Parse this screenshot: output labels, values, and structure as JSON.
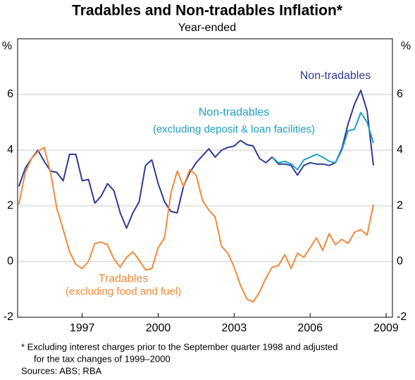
{
  "chart_data": {
    "type": "line",
    "title": "Tradables and Non-tradables Inflation*",
    "subtitle": "Year-ended",
    "y_label": "%",
    "y2_label": "%",
    "x": [
      1994.5,
      1994.75,
      1995,
      1995.25,
      1995.5,
      1995.75,
      1996,
      1996.25,
      1996.5,
      1996.75,
      1997,
      1997.25,
      1997.5,
      1997.75,
      1998,
      1998.25,
      1998.5,
      1998.75,
      1999,
      1999.25,
      1999.5,
      1999.75,
      2000,
      2000.25,
      2000.5,
      2000.75,
      2001,
      2001.25,
      2001.5,
      2001.75,
      2002,
      2002.25,
      2002.5,
      2002.75,
      2003,
      2003.25,
      2003.5,
      2003.75,
      2004,
      2004.25,
      2004.5,
      2004.75,
      2005,
      2005.25,
      2005.5,
      2005.75,
      2006,
      2006.25,
      2006.5,
      2006.75,
      2007,
      2007.25,
      2007.5,
      2007.75,
      2008,
      2008.25,
      2008.5
    ],
    "series": [
      {
        "name": "Non-tradables",
        "color": "#2e3b94",
        "values": [
          2.7,
          3.35,
          3.7,
          4.0,
          3.6,
          3.25,
          3.2,
          2.9,
          3.85,
          3.85,
          2.9,
          2.95,
          2.1,
          2.35,
          2.8,
          2.55,
          1.75,
          1.2,
          1.75,
          2.15,
          3.45,
          3.65,
          2.8,
          2.15,
          1.8,
          1.75,
          2.7,
          3.2,
          3.55,
          3.8,
          4.05,
          3.75,
          4.0,
          4.1,
          4.15,
          4.35,
          4.2,
          4.15,
          3.7,
          3.55,
          3.75,
          3.5,
          3.5,
          3.45,
          3.1,
          3.45,
          3.55,
          3.5,
          3.5,
          3.45,
          3.55,
          4.05,
          4.95,
          5.65,
          6.15,
          5.4,
          3.45
        ]
      },
      {
        "name": "Non-tradables (excluding deposit & loan facilities)",
        "color": "#1c9fc2",
        "values": [
          null,
          null,
          null,
          null,
          null,
          null,
          null,
          null,
          null,
          null,
          null,
          null,
          null,
          null,
          null,
          null,
          null,
          null,
          null,
          null,
          null,
          null,
          null,
          null,
          null,
          null,
          null,
          null,
          null,
          null,
          null,
          null,
          null,
          null,
          null,
          null,
          null,
          null,
          null,
          null,
          3.75,
          3.55,
          3.6,
          3.5,
          3.3,
          3.65,
          3.75,
          3.85,
          3.75,
          3.6,
          3.55,
          4.0,
          4.7,
          4.75,
          5.35,
          5.0,
          4.25
        ]
      },
      {
        "name": "Tradables (excluding food and fuel)",
        "color": "#f08a3c",
        "values": [
          2.05,
          3.2,
          3.7,
          3.95,
          4.1,
          3.2,
          1.9,
          1.15,
          0.35,
          -0.1,
          -0.25,
          0,
          0.65,
          0.7,
          0.6,
          0.1,
          -0.2,
          0.15,
          0.35,
          0.05,
          -0.3,
          -0.25,
          0.5,
          0.85,
          2.45,
          3.25,
          2.7,
          3.3,
          3.1,
          2.2,
          1.85,
          1.6,
          0.55,
          0.3,
          -0.2,
          -0.85,
          -1.35,
          -1.45,
          -1.1,
          -0.6,
          -0.2,
          -0.15,
          0.25,
          -0.25,
          0.3,
          0.15,
          0.5,
          0.85,
          0.4,
          1.0,
          0.6,
          0.8,
          0.65,
          1.05,
          1.15,
          0.95,
          2.05
        ]
      }
    ],
    "annotations": [
      [
        "Non-tradables"
      ],
      [
        "Non-tradables",
        "(excluding deposit & loan facilities)"
      ],
      [
        "Tradables",
        "(excluding food and fuel)"
      ]
    ],
    "xlim": [
      1994.45,
      2009.25
    ],
    "xticks": [
      1997,
      2000,
      2003,
      2006,
      2009
    ],
    "ylim": [
      -2,
      8
    ],
    "yticks": [
      -2,
      0,
      2,
      4,
      6
    ],
    "y2lim": [
      -2,
      8
    ],
    "y2ticks": [
      -2,
      0,
      2,
      4,
      6
    ],
    "grid": true,
    "footnote": [
      "*  Excluding interest charges prior to the September quarter 1998 and adjusted",
      "for the tax changes of 1999–2000"
    ],
    "sources": "Sources: ABS; RBA"
  }
}
